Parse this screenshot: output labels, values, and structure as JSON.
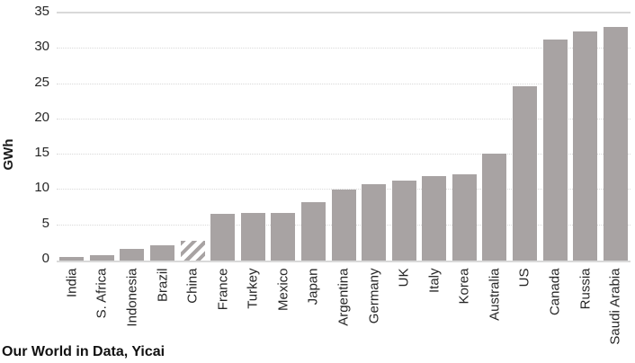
{
  "chart_data": {
    "type": "bar",
    "title": "",
    "ylabel": "GWh",
    "xlabel": "",
    "ylim": [
      0,
      35
    ],
    "yticks": [
      0,
      5,
      10,
      15,
      20,
      25,
      30,
      35
    ],
    "grid": true,
    "legend_position": "none",
    "categories": [
      "India",
      "S. Africa",
      "Indonesia",
      "Brazil",
      "China",
      "France",
      "Turkey",
      "Mexico",
      "Japan",
      "Argentina",
      "Germany",
      "UK",
      "Italy",
      "Korea",
      "Australia",
      "US",
      "Canada",
      "Russia",
      "Saudi Arabia"
    ],
    "values": [
      0.5,
      0.8,
      1.6,
      2.2,
      2.8,
      6.6,
      6.8,
      6.8,
      8.3,
      10.1,
      10.8,
      11.3,
      12.0,
      12.2,
      15.2,
      24.7,
      31.3,
      32.5,
      33.1
    ],
    "hatched_category": "China",
    "colors": {
      "bar": "#a8a3a3",
      "hatch_background": "#ffffff",
      "gridline": "#d9d9d9",
      "axis_text": "#262626"
    },
    "source": "Our World in Data, Yicai"
  }
}
